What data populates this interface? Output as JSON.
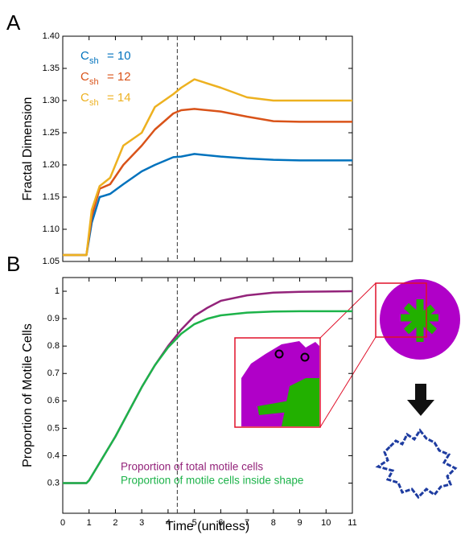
{
  "chart_data": [
    {
      "type": "line",
      "panel": "A",
      "ylabel": "Fractal Dimension",
      "x": [
        0,
        0.9,
        1.1,
        1.4,
        1.8,
        2.3,
        3,
        3.5,
        4.2,
        4.5,
        5,
        6,
        7,
        8,
        9,
        11
      ],
      "series": [
        {
          "name": "C",
          "name_sub": "sh",
          "name_tail": "= 10",
          "color": "#0072bd",
          "values": [
            1.06,
            1.06,
            1.11,
            1.15,
            1.155,
            1.17,
            1.19,
            1.2,
            1.212,
            1.213,
            1.217,
            1.213,
            1.21,
            1.208,
            1.207,
            1.207
          ]
        },
        {
          "name": "C",
          "name_sub": "sh",
          "name_tail": "= 12",
          "color": "#d95319",
          "values": [
            1.06,
            1.06,
            1.12,
            1.163,
            1.17,
            1.2,
            1.23,
            1.255,
            1.28,
            1.285,
            1.287,
            1.283,
            1.275,
            1.268,
            1.267,
            1.267
          ]
        },
        {
          "name": "C",
          "name_sub": "sh",
          "name_tail": "= 14",
          "color": "#edb120",
          "values": [
            1.06,
            1.06,
            1.13,
            1.167,
            1.18,
            1.23,
            1.25,
            1.29,
            1.31,
            1.32,
            1.333,
            1.32,
            1.305,
            1.3,
            1.3,
            1.3
          ]
        }
      ],
      "xlim": [
        0,
        11
      ],
      "xticks": [
        0,
        1,
        2,
        3,
        4,
        5,
        6,
        7,
        8,
        9,
        10,
        11
      ],
      "xtick_labels": false,
      "ylim": [
        1.05,
        1.4
      ],
      "yticks": [
        1.05,
        {
          "value": 1.1,
          "label": "1.10"
        },
        1.15,
        {
          "value": 1.2,
          "label": "1.20"
        },
        1.25,
        {
          "value": 1.3,
          "label": "1.30"
        },
        1.35,
        {
          "value": 1.4,
          "label": "1.40"
        }
      ],
      "vline": 4.35,
      "grid": false
    },
    {
      "type": "line",
      "panel": "B",
      "ylabel": "Proportion of Motile Cells",
      "xlabel": "Time (unitless)",
      "x": [
        0,
        0.9,
        1,
        1.5,
        2,
        2.5,
        3,
        3.5,
        4,
        4.5,
        5,
        5.5,
        6,
        7,
        8,
        9,
        10,
        11
      ],
      "series": [
        {
          "name": "Proportion of total motile cells",
          "color": "#93237a",
          "values": [
            0.3,
            0.3,
            0.31,
            0.39,
            0.47,
            0.56,
            0.65,
            0.73,
            0.8,
            0.86,
            0.91,
            0.94,
            0.965,
            0.985,
            0.995,
            0.998,
            0.999,
            1.0
          ]
        },
        {
          "name": "Proportion of motile cells inside shape",
          "color": "#1db34a",
          "values": [
            0.3,
            0.3,
            0.31,
            0.39,
            0.47,
            0.56,
            0.65,
            0.73,
            0.795,
            0.845,
            0.88,
            0.9,
            0.912,
            0.922,
            0.926,
            0.927,
            0.927,
            0.927
          ]
        }
      ],
      "xlim": [
        0,
        11
      ],
      "xticks": [
        0,
        1,
        2,
        3,
        4,
        5,
        6,
        7,
        8,
        9,
        10,
        11
      ],
      "xtick_labels": true,
      "ylim": [
        0.19,
        1.05
      ],
      "yticks": [
        0.3,
        0.4,
        0.5,
        0.6,
        0.7,
        0.8,
        0.9,
        1
      ],
      "vline": 4.35,
      "grid": false
    }
  ]
}
